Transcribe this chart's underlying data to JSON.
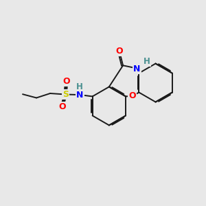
{
  "bg_color": "#e8e8e8",
  "bond_color": "#1a1a1a",
  "bond_width": 1.4,
  "dbo": 0.055,
  "atom_colors": {
    "O": "#ff0000",
    "N": "#0000ff",
    "S": "#cccc00",
    "H": "#4a9090",
    "C": "#1a1a1a"
  },
  "font_size": 8.5
}
